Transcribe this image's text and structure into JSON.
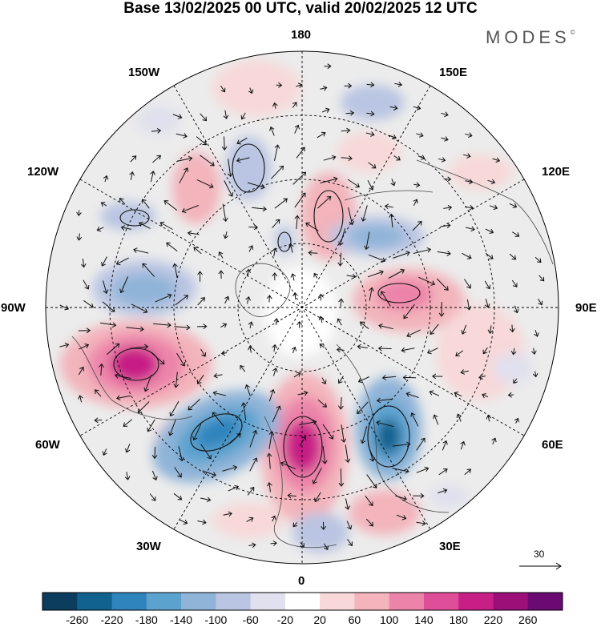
{
  "title": "Base 13/02/2025 00 UTC, valid 20/02/2025 12 UTC",
  "brand": {
    "name": "MODES",
    "mark": "©"
  },
  "longitude_labels": {
    "lon_180": "180",
    "lon_150e": "150E",
    "lon_120e": "120E",
    "lon_90e": "90E",
    "lon_60e": "60E",
    "lon_30e": "30E",
    "lon_0": "0",
    "lon_30w": "30W",
    "lon_60w": "60W",
    "lon_90w": "90W",
    "lon_120w": "120W",
    "lon_150w": "150W"
  },
  "vector_scale": {
    "value": "30"
  },
  "colorbar": {
    "ticks": [
      "-260",
      "-220",
      "-180",
      "-140",
      "-100",
      "-60",
      "-20",
      "20",
      "60",
      "100",
      "140",
      "180",
      "220",
      "260"
    ],
    "colors": [
      "#0c3c5e",
      "#11628f",
      "#2f84bd",
      "#5ca2cf",
      "#8fb4d8",
      "#b9c5e2",
      "#e0e0ee",
      "#ffffff",
      "#f8d8d8",
      "#f3b4bb",
      "#ec84aa",
      "#df4f99",
      "#c71f86",
      "#9c0f79",
      "#6b0a72"
    ]
  },
  "map": {
    "projection": "north polar stereographic",
    "field": "shaded anomaly with wind vectors"
  }
}
